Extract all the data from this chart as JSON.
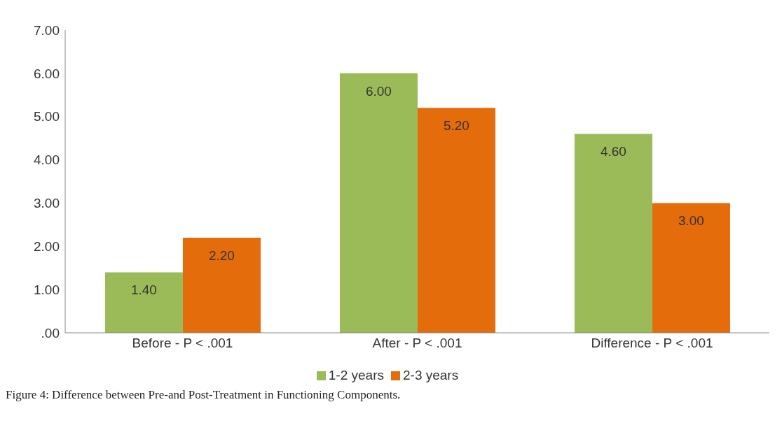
{
  "chart_data": {
    "type": "bar",
    "categories": [
      "Before - P < .001",
      "After - P < .001",
      "Difference - P < .001"
    ],
    "series": [
      {
        "name": "1-2 years",
        "color": "#9bbb59",
        "values": [
          1.4,
          6.0,
          4.6
        ],
        "value_labels": [
          "1.40",
          "6.00",
          "4.60"
        ]
      },
      {
        "name": "2-3 years",
        "color": "#e46c0a",
        "values": [
          2.2,
          5.2,
          3.0
        ],
        "value_labels": [
          "2.20",
          "5.20",
          "3.00"
        ]
      }
    ],
    "ylim": [
      0,
      7
    ],
    "yticks": [
      {
        "value": 0,
        "label": ".00"
      },
      {
        "value": 1,
        "label": "1.00"
      },
      {
        "value": 2,
        "label": "2.00"
      },
      {
        "value": 3,
        "label": "3.00"
      },
      {
        "value": 4,
        "label": "4.00"
      },
      {
        "value": 5,
        "label": "5.00"
      },
      {
        "value": 6,
        "label": "6.00"
      },
      {
        "value": 7,
        "label": "7.00"
      }
    ],
    "legend": "bottom",
    "annotations": [
      "Figure 4: Difference between Pre-and Post-Treatment in Functioning Components."
    ]
  }
}
